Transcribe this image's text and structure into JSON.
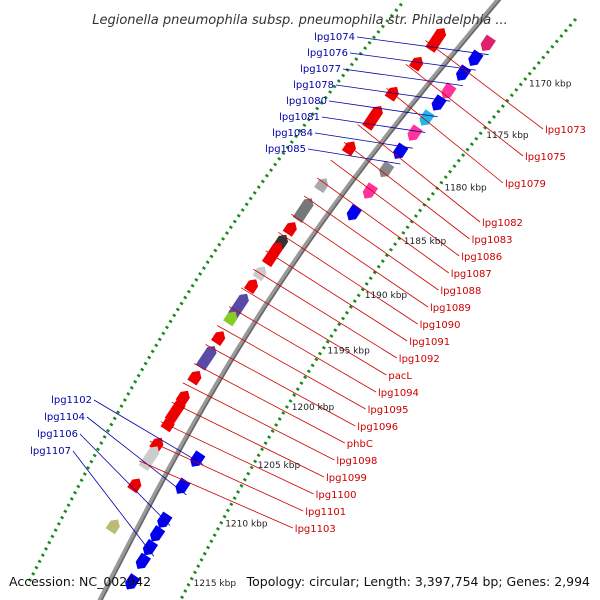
{
  "title": "Legionella pneumophila subsp. pneumophila str. Philadelphia ...",
  "accession": "Accession: NC_002942",
  "topology": "Topology: circular; Length: 3,397,754 bp; Genes: 2,994",
  "colors": {
    "forward": "#0000ee",
    "reverse": "#ee0000",
    "backbone": "#808080",
    "tick_dot": "#1a8a1a",
    "label_forward": "#0000aa",
    "label_reverse": "#cc0000"
  },
  "ticks": [
    "1170 kbp",
    "1175 kbp",
    "1180 kbp",
    "1185 kbp",
    "1190 kbp",
    "1195 kbp",
    "1200 kbp",
    "1205 kbp",
    "1210 kbp",
    "1215 kbp"
  ],
  "forward_labels": [
    "lpg1074",
    "lpg1076",
    "lpg1077",
    "lpg1078",
    "lpg1080",
    "lpg1081",
    "lpg1084",
    "lpg1085",
    "lpg1102",
    "lpg1104",
    "lpg1106",
    "lpg1107"
  ],
  "reverse_labels": [
    "lpg1073",
    "lpg1075",
    "lpg1079",
    "lpg1082",
    "lpg1083",
    "lpg1086",
    "lpg1087",
    "lpg1088",
    "lpg1089",
    "lpg1090",
    "lpg1091",
    "lpg1092",
    "pacL",
    "lpg1094",
    "lpg1095",
    "lpg1096",
    "phbC",
    "lpg1098",
    "lpg1099",
    "lpg1100",
    "lpg1101",
    "lpg1103"
  ]
}
